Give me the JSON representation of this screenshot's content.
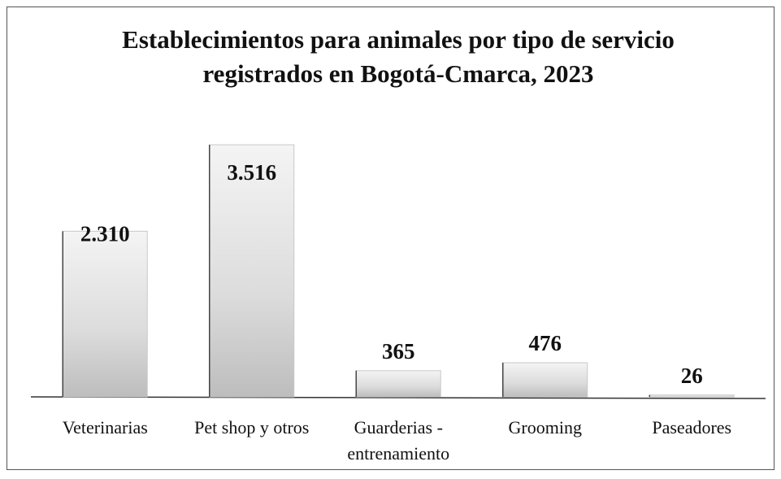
{
  "chart_data": {
    "type": "bar",
    "title": "Establecimientos para animales por tipo de servicio registrados en Bogotá-Cmarca, 2023",
    "categories": [
      "Veterinarias",
      "Pet shop y otros",
      "Guarderias - entrenamiento",
      "Grooming",
      "Paseadores"
    ],
    "values": [
      2310,
      3516,
      365,
      476,
      26
    ],
    "value_labels": [
      "2.310",
      "3.516",
      "365",
      "476",
      "26"
    ],
    "color": "#c8c8c8"
  }
}
